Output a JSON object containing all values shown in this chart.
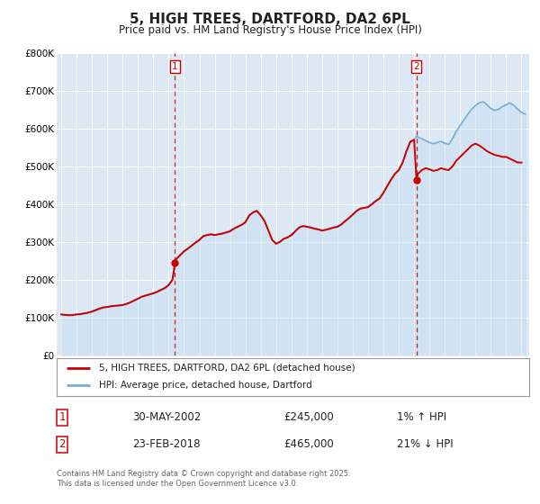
{
  "title": "5, HIGH TREES, DARTFORD, DA2 6PL",
  "subtitle": "Price paid vs. HM Land Registry's House Price Index (HPI)",
  "background_color": "#ffffff",
  "plot_bg_color": "#dce9f5",
  "grid_color": "#ffffff",
  "ylim": [
    0,
    800000
  ],
  "yticks": [
    0,
    100000,
    200000,
    300000,
    400000,
    500000,
    600000,
    700000,
    800000
  ],
  "ytick_labels": [
    "£0",
    "£100K",
    "£200K",
    "£300K",
    "£400K",
    "£500K",
    "£600K",
    "£700K",
    "£800K"
  ],
  "xlim_start": 1994.7,
  "xlim_end": 2025.5,
  "legend_label_red": "5, HIGH TREES, DARTFORD, DA2 6PL (detached house)",
  "legend_label_blue": "HPI: Average price, detached house, Dartford",
  "red_line_color": "#cc0000",
  "blue_line_color": "#7aadd4",
  "blue_fill_color": "#c5ddf0",
  "marker1_date": 2002.41,
  "marker1_value": 245000,
  "marker2_date": 2018.15,
  "marker2_value": 465000,
  "vline1_date": 2002.41,
  "vline2_date": 2018.15,
  "footer_text1": "Contains HM Land Registry data © Crown copyright and database right 2025.",
  "footer_text2": "This data is licensed under the Open Government Licence v3.0.",
  "table_row1": [
    "1",
    "30-MAY-2002",
    "£245,000",
    "1% ↑ HPI"
  ],
  "table_row2": [
    "2",
    "23-FEB-2018",
    "£465,000",
    "21% ↓ HPI"
  ],
  "red_hpi_data": [
    [
      1995.0,
      108000
    ],
    [
      1995.25,
      107000
    ],
    [
      1995.5,
      106000
    ],
    [
      1995.75,
      106500
    ],
    [
      1996.0,
      108000
    ],
    [
      1996.25,
      109000
    ],
    [
      1996.5,
      111000
    ],
    [
      1996.75,
      113000
    ],
    [
      1997.0,
      116000
    ],
    [
      1997.25,
      120000
    ],
    [
      1997.5,
      124000
    ],
    [
      1997.75,
      127000
    ],
    [
      1998.0,
      128000
    ],
    [
      1998.25,
      130000
    ],
    [
      1998.5,
      131000
    ],
    [
      1998.75,
      132000
    ],
    [
      1999.0,
      133000
    ],
    [
      1999.25,
      136000
    ],
    [
      1999.5,
      140000
    ],
    [
      1999.75,
      145000
    ],
    [
      2000.0,
      150000
    ],
    [
      2000.25,
      155000
    ],
    [
      2000.5,
      158000
    ],
    [
      2000.75,
      161000
    ],
    [
      2001.0,
      164000
    ],
    [
      2001.25,
      168000
    ],
    [
      2001.5,
      173000
    ],
    [
      2001.75,
      178000
    ],
    [
      2002.0,
      186000
    ],
    [
      2002.25,
      200000
    ],
    [
      2002.41,
      245000
    ],
    [
      2002.5,
      255000
    ],
    [
      2002.75,
      265000
    ],
    [
      2003.0,
      275000
    ],
    [
      2003.25,
      282000
    ],
    [
      2003.5,
      290000
    ],
    [
      2003.75,
      298000
    ],
    [
      2004.0,
      305000
    ],
    [
      2004.25,
      315000
    ],
    [
      2004.5,
      318000
    ],
    [
      2004.75,
      320000
    ],
    [
      2005.0,
      318000
    ],
    [
      2005.25,
      320000
    ],
    [
      2005.5,
      322000
    ],
    [
      2005.75,
      325000
    ],
    [
      2006.0,
      328000
    ],
    [
      2006.25,
      335000
    ],
    [
      2006.5,
      340000
    ],
    [
      2006.75,
      345000
    ],
    [
      2007.0,
      352000
    ],
    [
      2007.25,
      370000
    ],
    [
      2007.5,
      378000
    ],
    [
      2007.75,
      382000
    ],
    [
      2008.0,
      370000
    ],
    [
      2008.25,
      355000
    ],
    [
      2008.5,
      330000
    ],
    [
      2008.75,
      305000
    ],
    [
      2009.0,
      295000
    ],
    [
      2009.25,
      300000
    ],
    [
      2009.5,
      308000
    ],
    [
      2009.75,
      312000
    ],
    [
      2010.0,
      318000
    ],
    [
      2010.25,
      328000
    ],
    [
      2010.5,
      338000
    ],
    [
      2010.75,
      342000
    ],
    [
      2011.0,
      340000
    ],
    [
      2011.25,
      338000
    ],
    [
      2011.5,
      335000
    ],
    [
      2011.75,
      333000
    ],
    [
      2012.0,
      330000
    ],
    [
      2012.25,
      332000
    ],
    [
      2012.5,
      335000
    ],
    [
      2012.75,
      338000
    ],
    [
      2013.0,
      340000
    ],
    [
      2013.25,
      346000
    ],
    [
      2013.5,
      355000
    ],
    [
      2013.75,
      363000
    ],
    [
      2014.0,
      372000
    ],
    [
      2014.25,
      382000
    ],
    [
      2014.5,
      388000
    ],
    [
      2014.75,
      390000
    ],
    [
      2015.0,
      392000
    ],
    [
      2015.25,
      400000
    ],
    [
      2015.5,
      408000
    ],
    [
      2015.75,
      415000
    ],
    [
      2016.0,
      430000
    ],
    [
      2016.25,
      448000
    ],
    [
      2016.5,
      465000
    ],
    [
      2016.75,
      480000
    ],
    [
      2017.0,
      490000
    ],
    [
      2017.25,
      510000
    ],
    [
      2017.5,
      540000
    ],
    [
      2017.75,
      565000
    ],
    [
      2018.0,
      570000
    ],
    [
      2018.15,
      465000
    ],
    [
      2018.25,
      480000
    ],
    [
      2018.5,
      490000
    ],
    [
      2018.75,
      495000
    ],
    [
      2019.0,
      492000
    ],
    [
      2019.25,
      488000
    ],
    [
      2019.5,
      490000
    ],
    [
      2019.75,
      495000
    ],
    [
      2020.0,
      492000
    ],
    [
      2020.25,
      490000
    ],
    [
      2020.5,
      500000
    ],
    [
      2020.75,
      515000
    ],
    [
      2021.0,
      525000
    ],
    [
      2021.25,
      535000
    ],
    [
      2021.5,
      545000
    ],
    [
      2021.75,
      555000
    ],
    [
      2022.0,
      560000
    ],
    [
      2022.25,
      555000
    ],
    [
      2022.5,
      548000
    ],
    [
      2022.75,
      540000
    ],
    [
      2023.0,
      535000
    ],
    [
      2023.25,
      530000
    ],
    [
      2023.5,
      528000
    ],
    [
      2023.75,
      525000
    ],
    [
      2024.0,
      525000
    ],
    [
      2024.25,
      520000
    ],
    [
      2024.5,
      515000
    ],
    [
      2024.75,
      510000
    ],
    [
      2025.0,
      510000
    ]
  ],
  "blue_hpi_data": [
    [
      1995.0,
      108500
    ],
    [
      1995.25,
      107500
    ],
    [
      1995.5,
      107000
    ],
    [
      1995.75,
      107500
    ],
    [
      1996.0,
      108500
    ],
    [
      1996.25,
      109500
    ],
    [
      1996.5,
      111000
    ],
    [
      1996.75,
      112500
    ],
    [
      1997.0,
      115000
    ],
    [
      1997.25,
      118500
    ],
    [
      1997.5,
      122000
    ],
    [
      1997.75,
      125500
    ],
    [
      1998.0,
      127000
    ],
    [
      1998.25,
      129000
    ],
    [
      1998.5,
      130500
    ],
    [
      1998.75,
      131500
    ],
    [
      1999.0,
      133000
    ],
    [
      1999.25,
      136000
    ],
    [
      1999.5,
      140000
    ],
    [
      1999.75,
      145000
    ],
    [
      2000.0,
      150000
    ],
    [
      2000.25,
      155500
    ],
    [
      2000.5,
      159000
    ],
    [
      2000.75,
      162000
    ],
    [
      2001.0,
      165000
    ],
    [
      2001.25,
      169000
    ],
    [
      2001.5,
      174000
    ],
    [
      2001.75,
      179000
    ],
    [
      2002.0,
      187000
    ],
    [
      2002.25,
      201000
    ],
    [
      2002.5,
      256000
    ],
    [
      2002.75,
      266000
    ],
    [
      2003.0,
      276000
    ],
    [
      2003.25,
      283000
    ],
    [
      2003.5,
      291000
    ],
    [
      2003.75,
      299000
    ],
    [
      2004.0,
      306000
    ],
    [
      2004.25,
      316000
    ],
    [
      2004.5,
      319000
    ],
    [
      2004.75,
      321000
    ],
    [
      2005.0,
      319000
    ],
    [
      2005.25,
      321000
    ],
    [
      2005.5,
      323000
    ],
    [
      2005.75,
      326000
    ],
    [
      2006.0,
      329000
    ],
    [
      2006.25,
      336000
    ],
    [
      2006.5,
      341000
    ],
    [
      2006.75,
      346000
    ],
    [
      2007.0,
      353000
    ],
    [
      2007.25,
      371000
    ],
    [
      2007.5,
      379000
    ],
    [
      2007.75,
      383000
    ],
    [
      2008.0,
      371000
    ],
    [
      2008.25,
      356000
    ],
    [
      2008.5,
      331000
    ],
    [
      2008.75,
      306000
    ],
    [
      2009.0,
      296000
    ],
    [
      2009.25,
      301000
    ],
    [
      2009.5,
      309000
    ],
    [
      2009.75,
      313000
    ],
    [
      2010.0,
      319000
    ],
    [
      2010.25,
      329000
    ],
    [
      2010.5,
      339000
    ],
    [
      2010.75,
      343000
    ],
    [
      2011.0,
      341000
    ],
    [
      2011.25,
      339000
    ],
    [
      2011.5,
      336000
    ],
    [
      2011.75,
      334000
    ],
    [
      2012.0,
      331000
    ],
    [
      2012.25,
      333000
    ],
    [
      2012.5,
      336000
    ],
    [
      2012.75,
      339000
    ],
    [
      2013.0,
      341000
    ],
    [
      2013.25,
      347000
    ],
    [
      2013.5,
      356000
    ],
    [
      2013.75,
      364000
    ],
    [
      2014.0,
      373000
    ],
    [
      2014.25,
      383000
    ],
    [
      2014.5,
      389000
    ],
    [
      2014.75,
      391000
    ],
    [
      2015.0,
      393000
    ],
    [
      2015.25,
      401000
    ],
    [
      2015.5,
      409000
    ],
    [
      2015.75,
      416000
    ],
    [
      2016.0,
      431000
    ],
    [
      2016.25,
      449000
    ],
    [
      2016.5,
      466000
    ],
    [
      2016.75,
      481000
    ],
    [
      2017.0,
      491000
    ],
    [
      2017.25,
      511000
    ],
    [
      2017.5,
      541000
    ],
    [
      2017.75,
      566000
    ],
    [
      2018.0,
      571000
    ],
    [
      2018.15,
      580000
    ],
    [
      2018.25,
      577000
    ],
    [
      2018.5,
      573000
    ],
    [
      2018.75,
      568000
    ],
    [
      2019.0,
      563000
    ],
    [
      2019.25,
      560000
    ],
    [
      2019.5,
      563000
    ],
    [
      2019.75,
      566000
    ],
    [
      2020.0,
      561000
    ],
    [
      2020.25,
      558000
    ],
    [
      2020.5,
      573000
    ],
    [
      2020.75,
      593000
    ],
    [
      2021.0,
      608000
    ],
    [
      2021.25,
      623000
    ],
    [
      2021.5,
      638000
    ],
    [
      2021.75,
      651000
    ],
    [
      2022.0,
      661000
    ],
    [
      2022.25,
      668000
    ],
    [
      2022.5,
      671000
    ],
    [
      2022.75,
      663000
    ],
    [
      2023.0,
      653000
    ],
    [
      2023.25,
      648000
    ],
    [
      2023.5,
      651000
    ],
    [
      2023.75,
      658000
    ],
    [
      2024.0,
      663000
    ],
    [
      2024.25,
      668000
    ],
    [
      2024.5,
      661000
    ],
    [
      2024.75,
      651000
    ],
    [
      2025.0,
      643000
    ],
    [
      2025.25,
      638000
    ]
  ]
}
